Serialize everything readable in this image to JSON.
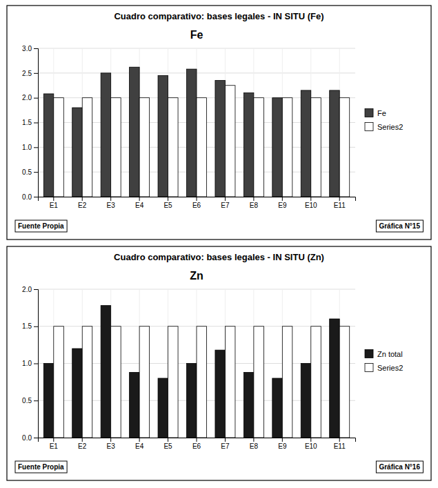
{
  "chart_data": [
    {
      "type": "bar",
      "title": "Cuadro comparativo: bases legales - IN SITU (Fe)",
      "subtitle": "Fe",
      "annotations": [
        "Fuente Propia",
        "Gráfica N°15"
      ],
      "categories": [
        "E1",
        "E2",
        "E3",
        "E4",
        "E5",
        "E6",
        "E7",
        "E8",
        "E9",
        "E10",
        "E11"
      ],
      "series": [
        {
          "name": "Fe",
          "color": "#404040",
          "values": [
            2.08,
            1.8,
            2.5,
            2.62,
            2.45,
            2.58,
            2.35,
            2.1,
            2.0,
            2.15,
            2.15
          ]
        },
        {
          "name": "Series2",
          "color": "#ffffff",
          "values": [
            2.0,
            2.0,
            2.0,
            2.0,
            2.0,
            2.0,
            2.25,
            2.0,
            2.0,
            2.0,
            2.0
          ]
        }
      ],
      "ylim": [
        0,
        3
      ],
      "yticks": [
        {
          "value": 0,
          "label": "0.0"
        },
        0.5,
        {
          "value": 1,
          "label": "1.0"
        },
        1.5,
        {
          "value": 2,
          "label": "2.0"
        },
        2.5,
        {
          "value": 3,
          "label": "3.0"
        }
      ],
      "grid": true,
      "legend": "right"
    },
    {
      "type": "bar",
      "title": "Cuadro comparativo: bases legales - IN SITU (Zn)",
      "subtitle": "Zn",
      "annotations": [
        "Fuente Propia",
        "Gráfica N°16"
      ],
      "categories": [
        "E1",
        "E2",
        "E3",
        "E4",
        "E5",
        "E6",
        "E7",
        "E8",
        "E9",
        "E10",
        "E11"
      ],
      "series": [
        {
          "name": "Zn total",
          "color": "#1a1a1a",
          "values": [
            1.0,
            1.2,
            1.78,
            0.88,
            0.8,
            1.0,
            1.18,
            0.88,
            0.8,
            1.0,
            1.6
          ]
        },
        {
          "name": "Series2",
          "color": "#ffffff",
          "values": [
            1.5,
            1.5,
            1.5,
            1.5,
            1.5,
            1.5,
            1.5,
            1.5,
            1.5,
            1.5,
            1.5
          ]
        }
      ],
      "ylim": [
        0,
        2
      ],
      "yticks": [
        {
          "value": 0,
          "label": "0.0"
        },
        0.5,
        {
          "value": 1,
          "label": "1.0"
        },
        1.5,
        {
          "value": 2,
          "label": "2.0"
        }
      ],
      "grid": true,
      "legend": "right"
    }
  ]
}
